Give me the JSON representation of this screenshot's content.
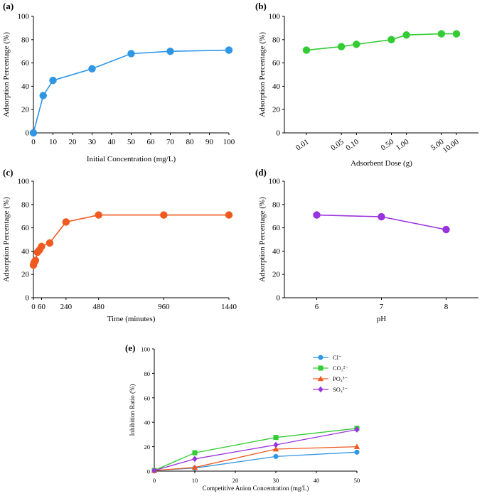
{
  "chart_data": [
    {
      "id": "a",
      "panel_label": "(a)",
      "type": "line",
      "color": "#2f96e6",
      "xlabel": "Initial Concentration (mg/L)",
      "ylabel": "Adsorption Percentage (%)",
      "xlim": [
        0,
        100
      ],
      "ylim": [
        0,
        100
      ],
      "xticks": [
        "0",
        "10",
        "20",
        "30",
        "40",
        "50",
        "60",
        "70",
        "80",
        "90",
        "100"
      ],
      "yticks": [
        "0",
        "20",
        "40",
        "60",
        "80",
        "100"
      ],
      "x": [
        0,
        5,
        10,
        30,
        50,
        70,
        100
      ],
      "values": [
        0,
        32,
        45,
        55,
        68,
        70,
        71
      ]
    },
    {
      "id": "b",
      "panel_label": "(b)",
      "type": "line",
      "color": "#33cc33",
      "xlabel": "Adsorbent Dose (g)",
      "ylabel": "Adsorption Percentage (%)",
      "xscale": "log",
      "xlim": [
        0.01,
        10
      ],
      "ylim": [
        0,
        100
      ],
      "xticks": [
        "0.01",
        "0.05",
        "0.10",
        "0.50",
        "1.00",
        "5.00",
        "10.00"
      ],
      "yticks": [
        "0",
        "20",
        "40",
        "60",
        "80",
        "100"
      ],
      "x": [
        0.01,
        0.05,
        0.1,
        0.5,
        1,
        5,
        10
      ],
      "values": [
        71,
        74,
        76,
        80,
        84,
        85,
        85
      ]
    },
    {
      "id": "c",
      "panel_label": "(c)",
      "type": "line",
      "color": "#f05a1e",
      "xlabel": "Time (minutes)",
      "ylabel": "Adsorption Percentage (%)",
      "xlim": [
        0,
        1440
      ],
      "ylim": [
        0,
        100
      ],
      "xticks": [
        "0",
        "60",
        "240",
        "480",
        "960",
        "1440"
      ],
      "yticks": [
        "0",
        "20",
        "40",
        "60",
        "80",
        "100"
      ],
      "x": [
        0,
        5,
        10,
        15,
        30,
        45,
        60,
        120,
        240,
        480,
        960,
        1440
      ],
      "values": [
        28,
        30,
        31,
        32,
        39,
        41,
        44,
        47,
        65,
        71,
        71,
        71
      ]
    },
    {
      "id": "d",
      "panel_label": "(d)",
      "type": "line",
      "color": "#9933dd",
      "xlabel": "pH",
      "ylabel": "Adsorption Percentage (%)",
      "xlim": [
        5.5,
        8.5
      ],
      "ylim": [
        0,
        100
      ],
      "xticks": [
        "6",
        "7",
        "8"
      ],
      "yticks": [
        "0",
        "20",
        "40",
        "60",
        "80",
        "100"
      ],
      "x": [
        6,
        7,
        8
      ],
      "values": [
        71,
        69.5,
        58.5
      ]
    },
    {
      "id": "e",
      "panel_label": "(e)",
      "type": "line",
      "xlabel": "Competitive Anion Concentration (mg/L)",
      "ylabel": "Inhibition Ratio (%)",
      "xlim": [
        0,
        50
      ],
      "ylim": [
        0,
        100
      ],
      "xticks": [
        "0",
        "10",
        "20",
        "30",
        "40",
        "50"
      ],
      "yticks": [
        "0",
        "20",
        "40",
        "60",
        "80",
        "100"
      ],
      "x": [
        0,
        10,
        30,
        50
      ],
      "legend_position": "top-right",
      "series": [
        {
          "name": "Cl⁻",
          "marker": "circle",
          "color": "#2f96e6",
          "values": [
            0.5,
            2.5,
            12,
            15.5
          ]
        },
        {
          "name": "CO₃²⁻",
          "marker": "square",
          "color": "#33cc33",
          "values": [
            0.5,
            15,
            27.5,
            35
          ]
        },
        {
          "name": "PO₄³⁻",
          "marker": "triangle",
          "color": "#f05a1e",
          "values": [
            0.5,
            3,
            18,
            20
          ]
        },
        {
          "name": "SO₄²⁻",
          "marker": "diamond",
          "color": "#9933dd",
          "values": [
            0.5,
            10,
            21.5,
            34
          ]
        }
      ]
    }
  ]
}
